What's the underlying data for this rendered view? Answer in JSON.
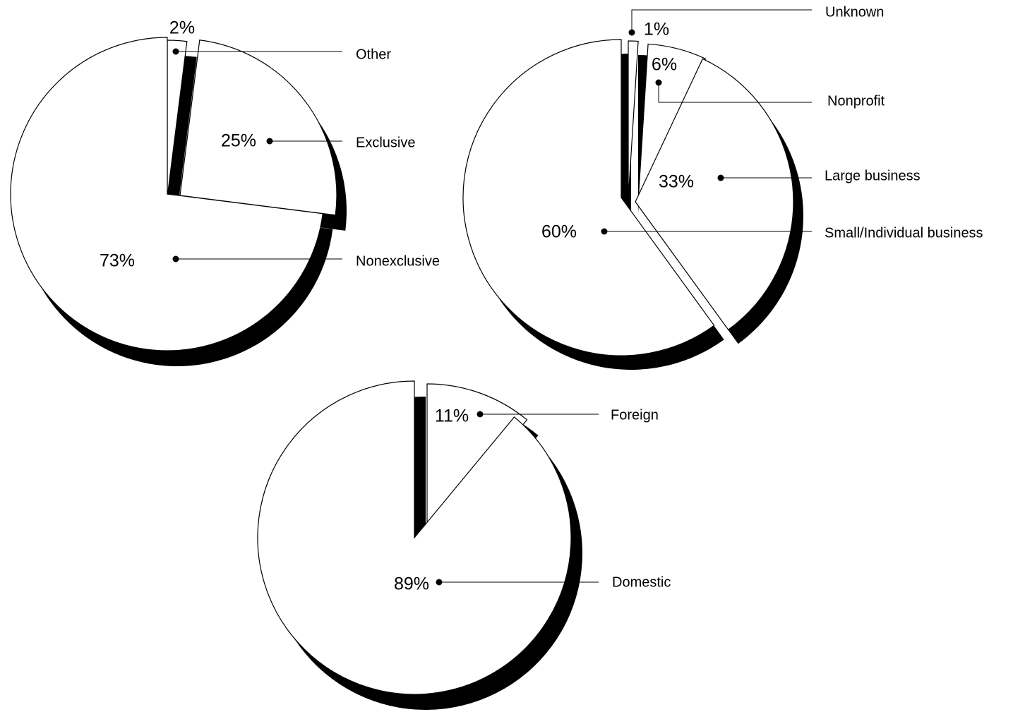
{
  "colors": {
    "slice_fill": "#ffffff",
    "stroke": "#000000",
    "shadow": "#000000"
  },
  "chart_data": [
    {
      "type": "pie",
      "labels": [
        "Other",
        "Exclusive",
        "Nonexclusive"
      ],
      "values": [
        2,
        25,
        73
      ],
      "value_labels": [
        "2%",
        "25%",
        "73%"
      ]
    },
    {
      "type": "pie",
      "labels": [
        "Unknown",
        "Nonprofit",
        "Large business",
        "Small/Individual business"
      ],
      "values": [
        1,
        6,
        33,
        60
      ],
      "value_labels": [
        "1%",
        "6%",
        "33%",
        "60%"
      ]
    },
    {
      "type": "pie",
      "labels": [
        "Foreign",
        "Domestic"
      ],
      "values": [
        11,
        89
      ],
      "value_labels": [
        "11%",
        "89%"
      ]
    }
  ]
}
